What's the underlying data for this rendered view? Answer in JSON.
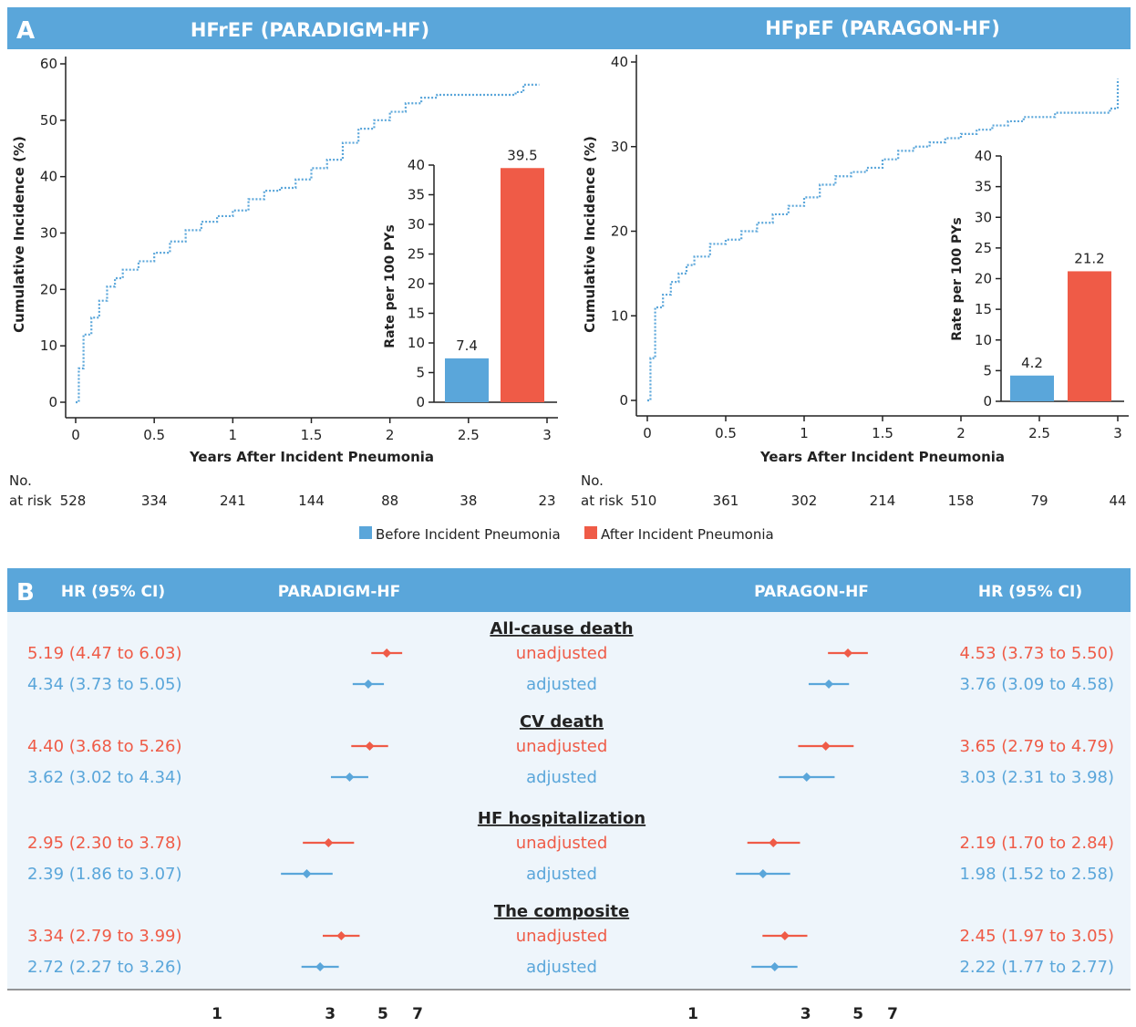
{
  "panel_a": {
    "letter": "A",
    "left_title": "HFrEF (PARADIGM-HF)",
    "right_title": "HFpEF (PARAGON-HF)",
    "number_at_risk_label_line1": "No.",
    "number_at_risk_label_line2": "at risk",
    "legend": [
      {
        "label": "Before Incident Pneumonia",
        "color": "#5aa6da"
      },
      {
        "label": "After Incident Pneumonia",
        "color": "#ef5b47"
      }
    ]
  },
  "panel_b": {
    "letter": "B",
    "headers": {
      "left_hr": "HR (95% CI)",
      "left_trial": "PARADIGM-HF",
      "right_trial": "PARAGON-HF",
      "right_hr": "HR (95% CI)"
    },
    "header_color": "#5aa6da",
    "body_color": "#eef5fb",
    "unadjusted_color": "#ef5b47",
    "adjusted_color": "#5aa6da"
  },
  "chart_data": [
    {
      "type": "line",
      "title": "HFrEF (PARADIGM-HF)",
      "xlabel": "Years After Incident Pneumonia",
      "ylabel": "Cumulative Incidence (%)",
      "xlim": [
        0,
        3
      ],
      "ylim": [
        0,
        60
      ],
      "xticks": [
        "0",
        "0.5",
        "1",
        "1.5",
        "2",
        "2.5",
        "3"
      ],
      "yticks": [
        "0",
        "10",
        "20",
        "30",
        "40",
        "50",
        "60"
      ],
      "series_color": "#5aa6da",
      "x": [
        0,
        0.02,
        0.05,
        0.1,
        0.15,
        0.2,
        0.25,
        0.3,
        0.4,
        0.5,
        0.6,
        0.7,
        0.8,
        0.9,
        1.0,
        1.1,
        1.2,
        1.3,
        1.4,
        1.5,
        1.6,
        1.7,
        1.8,
        1.9,
        2.0,
        2.1,
        2.2,
        2.3,
        2.5,
        2.7,
        2.8,
        2.85,
        2.95
      ],
      "y": [
        0,
        6,
        12,
        15,
        18,
        20.5,
        22,
        23.5,
        25,
        26.5,
        28.5,
        30.5,
        32,
        33,
        34,
        36,
        37.5,
        38,
        39.5,
        41.5,
        43,
        46,
        48.5,
        50,
        51.5,
        53,
        54,
        54.5,
        54.5,
        54.5,
        55,
        56.3,
        56.3
      ],
      "number_at_risk": [
        "528",
        "334",
        "241",
        "144",
        "88",
        "38",
        "23"
      ],
      "inset": {
        "type": "bar",
        "ylabel": "Rate per 100 PYs",
        "ylim": [
          0,
          40
        ],
        "yticks": [
          "0",
          "5",
          "10",
          "15",
          "20",
          "25",
          "30",
          "35",
          "40"
        ],
        "categories": [
          "Before Incident Pneumonia",
          "After Incident Pneumonia"
        ],
        "values": [
          7.4,
          39.5
        ],
        "value_labels": [
          "7.4",
          "39.5"
        ]
      }
    },
    {
      "type": "line",
      "title": "HFpEF (PARAGON-HF)",
      "xlabel": "Years After Incident Pneumonia",
      "ylabel": "Cumulative Incidence (%)",
      "xlim": [
        0,
        3
      ],
      "ylim": [
        0,
        40
      ],
      "xticks": [
        "0",
        "0.5",
        "1",
        "1.5",
        "2",
        "2.5",
        "3"
      ],
      "yticks": [
        "0",
        "10",
        "20",
        "30",
        "40"
      ],
      "series_color": "#5aa6da",
      "x": [
        0,
        0.02,
        0.05,
        0.1,
        0.15,
        0.2,
        0.25,
        0.3,
        0.4,
        0.5,
        0.6,
        0.7,
        0.8,
        0.9,
        1.0,
        1.1,
        1.2,
        1.3,
        1.4,
        1.5,
        1.6,
        1.7,
        1.8,
        1.9,
        2.0,
        2.1,
        2.2,
        2.3,
        2.4,
        2.6,
        2.8,
        2.95,
        3.0
      ],
      "y": [
        0,
        5,
        11,
        12.5,
        14,
        15,
        16,
        17,
        18.5,
        19,
        20,
        21,
        22,
        23,
        24,
        25.5,
        26.5,
        27,
        27.5,
        28.5,
        29.5,
        30,
        30.5,
        31,
        31.5,
        32,
        32.5,
        33,
        33.5,
        34,
        34,
        34.5,
        38
      ],
      "number_at_risk": [
        "510",
        "361",
        "302",
        "214",
        "158",
        "79",
        "44"
      ],
      "inset": {
        "type": "bar",
        "ylabel": "Rate per 100 PYs",
        "ylim": [
          0,
          40
        ],
        "yticks": [
          "0",
          "5",
          "10",
          "15",
          "20",
          "25",
          "30",
          "35",
          "40"
        ],
        "categories": [
          "Before Incident Pneumonia",
          "After Incident Pneumonia"
        ],
        "values": [
          4.2,
          21.2
        ],
        "value_labels": [
          "4.2",
          "21.2"
        ]
      }
    },
    {
      "type": "scatter",
      "subtype": "forest",
      "x_scale": "log",
      "xticks": [
        "1",
        "3",
        "5",
        "7"
      ],
      "outcomes": [
        {
          "name": "All-cause death",
          "rows": [
            {
              "label": "unadjusted",
              "paradigm": {
                "hr": 5.19,
                "lo": 4.47,
                "hi": 6.03,
                "text": "5.19 (4.47 to 6.03)"
              },
              "paragon": {
                "hr": 4.53,
                "lo": 3.73,
                "hi": 5.5,
                "text": "4.53 (3.73 to 5.50)"
              }
            },
            {
              "label": "adjusted",
              "paradigm": {
                "hr": 4.34,
                "lo": 3.73,
                "hi": 5.05,
                "text": "4.34 (3.73 to 5.05)"
              },
              "paragon": {
                "hr": 3.76,
                "lo": 3.09,
                "hi": 4.58,
                "text": "3.76 (3.09 to 4.58)"
              }
            }
          ]
        },
        {
          "name": "CV death",
          "rows": [
            {
              "label": "unadjusted",
              "paradigm": {
                "hr": 4.4,
                "lo": 3.68,
                "hi": 5.26,
                "text": "4.40 (3.68 to 5.26)"
              },
              "paragon": {
                "hr": 3.65,
                "lo": 2.79,
                "hi": 4.79,
                "text": "3.65 (2.79 to 4.79)"
              }
            },
            {
              "label": "adjusted",
              "paradigm": {
                "hr": 3.62,
                "lo": 3.02,
                "hi": 4.34,
                "text": "3.62 (3.02 to 4.34)"
              },
              "paragon": {
                "hr": 3.03,
                "lo": 2.31,
                "hi": 3.98,
                "text": "3.03 (2.31 to 3.98)"
              }
            }
          ]
        },
        {
          "name": "HF hospitalization",
          "rows": [
            {
              "label": "unadjusted",
              "paradigm": {
                "hr": 2.95,
                "lo": 2.3,
                "hi": 3.78,
                "text": "2.95 (2.30 to 3.78)"
              },
              "paragon": {
                "hr": 2.19,
                "lo": 1.7,
                "hi": 2.84,
                "text": "2.19 (1.70 to 2.84)"
              }
            },
            {
              "label": "adjusted",
              "paradigm": {
                "hr": 2.39,
                "lo": 1.86,
                "hi": 3.07,
                "text": "2.39 (1.86 to 3.07)"
              },
              "paragon": {
                "hr": 1.98,
                "lo": 1.52,
                "hi": 2.58,
                "text": "1.98 (1.52 to 2.58)"
              }
            }
          ]
        },
        {
          "name": "The composite",
          "rows": [
            {
              "label": "unadjusted",
              "paradigm": {
                "hr": 3.34,
                "lo": 2.79,
                "hi": 3.99,
                "text": "3.34 (2.79 to 3.99)"
              },
              "paragon": {
                "hr": 2.45,
                "lo": 1.97,
                "hi": 3.05,
                "text": "2.45 (1.97 to 3.05)"
              }
            },
            {
              "label": "adjusted",
              "paradigm": {
                "hr": 2.72,
                "lo": 2.27,
                "hi": 3.26,
                "text": "2.72 (2.27 to 3.26)"
              },
              "paragon": {
                "hr": 2.22,
                "lo": 1.77,
                "hi": 2.77,
                "text": "2.22 (1.77 to 2.77)"
              }
            }
          ]
        }
      ]
    }
  ]
}
